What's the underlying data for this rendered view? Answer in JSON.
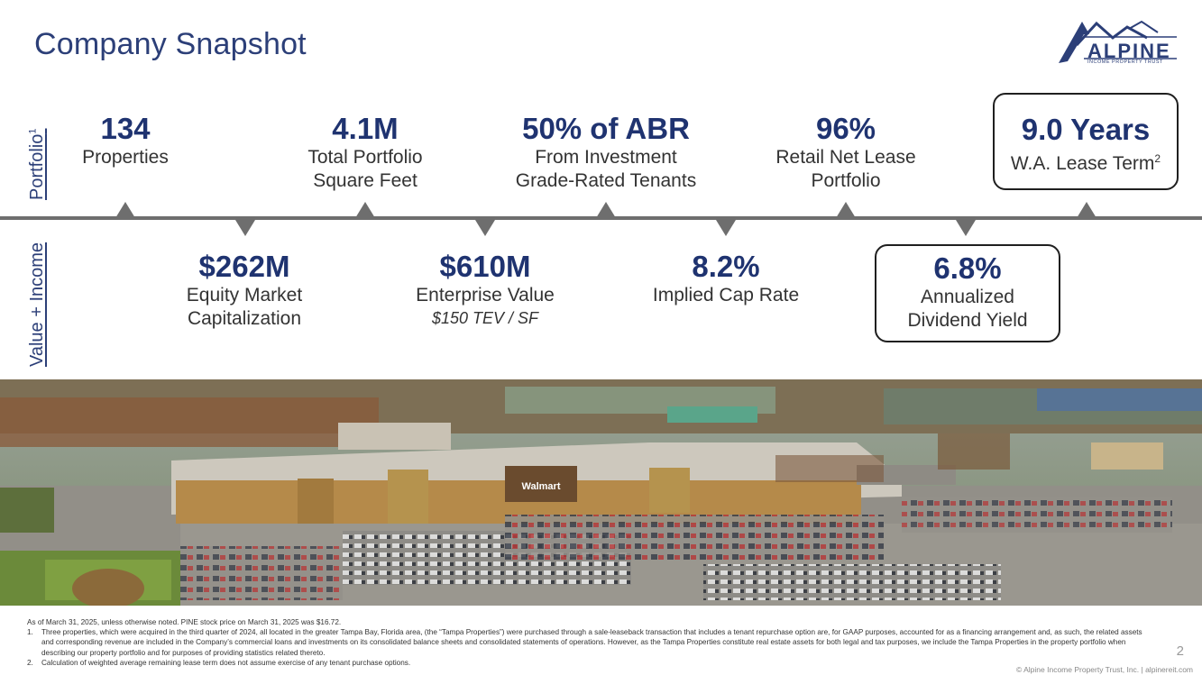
{
  "title": "Company Snapshot",
  "logo": {
    "word": "ALPINE",
    "subtitle": "INCOME PROPERTY TRUST"
  },
  "side_labels": {
    "portfolio": "Portfolio",
    "portfolio_sup": "1",
    "value": "Value + Income"
  },
  "portfolio_metrics": [
    {
      "value": "134",
      "label1": "Properties",
      "label2": ""
    },
    {
      "value": "4.1M",
      "label1": "Total Portfolio",
      "label2": "Square Feet"
    },
    {
      "value": "50% of ABR",
      "label1": "From Investment",
      "label2": "Grade-Rated Tenants"
    },
    {
      "value": "96%",
      "label1": "Retail Net Lease",
      "label2": "Portfolio"
    },
    {
      "value": "9.0 Years",
      "label1": "W.A. Lease Term",
      "label_sup": "2"
    }
  ],
  "value_metrics": [
    {
      "value": "$262M",
      "label1": "Equity Market",
      "label2": "Capitalization"
    },
    {
      "value": "$610M",
      "label1": "Enterprise Value",
      "note": "$150 TEV / SF"
    },
    {
      "value": "8.2%",
      "label1": "Implied Cap Rate"
    },
    {
      "value": "6.8%",
      "label1": "Annualized",
      "label2": "Dividend Yield"
    }
  ],
  "photo": {
    "sign_text": "Walmart"
  },
  "footnotes": {
    "intro": "As of March 31, 2025, unless otherwise noted. PINE stock price on March 31, 2025 was $16.72.",
    "items": [
      {
        "num": "1.",
        "text": "Three properties, which were acquired in the third quarter of 2024, all located in the greater Tampa Bay, Florida area, (the “Tampa Properties”) were purchased through a sale-leaseback transaction that includes a tenant repurchase option are, for GAAP purposes, accounted for as a financing arrangement and, as such, the related assets and corresponding revenue are included in the Company’s commercial loans and investments on its consolidated balance sheets and consolidated statements of operations. However, as the Tampa Properties constitute real estate assets for both legal and tax purposes, we include the Tampa Properties in the property portfolio when describing our property portfolio and for purposes of providing statistics related thereto."
      },
      {
        "num": "2.",
        "text": "Calculation of weighted average remaining lease term does not assume exercise of any tenant purchase options."
      }
    ]
  },
  "page_number": "2",
  "copyright": "© Alpine Income Property Trust, Inc.  |  alpinereit.com",
  "colors": {
    "navy": "#1f3370",
    "title_blue": "#2c3f78",
    "timeline_gray": "#6e6e6e"
  }
}
